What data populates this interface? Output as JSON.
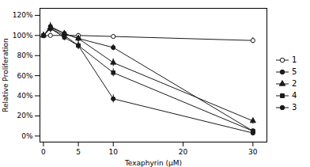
{
  "chart_data": {
    "type": "line",
    "xlabel": "Texaphyrin (μM)",
    "ylabel": "Relative Proliferation",
    "x": [
      0,
      1,
      3,
      5,
      10,
      30
    ],
    "series": [
      {
        "name": "1",
        "color": "#1a1a1a",
        "marker": "circle-open",
        "line_style": "solid",
        "values": [
          100,
          100,
          100,
          100,
          99,
          95
        ],
        "yerr": [
          2,
          2,
          2,
          2,
          2,
          3
        ]
      },
      {
        "name": "5",
        "color": "#1a1a1a",
        "marker": "circle",
        "line_style": "solid",
        "values": [
          100,
          109,
          102,
          97,
          88,
          5
        ],
        "yerr": [
          3,
          4,
          3,
          3,
          3,
          2
        ]
      },
      {
        "name": "2",
        "color": "#1a1a1a",
        "marker": "triangle",
        "line_style": "solid",
        "values": [
          100,
          108,
          102,
          97,
          73,
          15
        ],
        "yerr": [
          3,
          4,
          3,
          3,
          4,
          3
        ]
      },
      {
        "name": "4",
        "color": "#1a1a1a",
        "marker": "square",
        "line_style": "solid",
        "values": [
          100,
          107,
          100,
          90,
          63,
          5
        ],
        "yerr": [
          3,
          4,
          3,
          3,
          4,
          2
        ]
      },
      {
        "name": "3",
        "color": "#1a1a1a",
        "marker": "circle",
        "line_style": "solid",
        "values": [
          100,
          107,
          98,
          90,
          37,
          3
        ],
        "yerr": [
          3,
          4,
          3,
          4,
          4,
          2
        ]
      }
    ],
    "xlim": [
      -0.5,
      32
    ],
    "ylim": [
      -6,
      127
    ],
    "xticks": [
      0,
      5,
      10,
      20,
      30
    ],
    "yticks": [
      {
        "value": 0,
        "label": "0%"
      },
      {
        "value": 20,
        "label": "20%"
      },
      {
        "value": 40,
        "label": "40%"
      },
      {
        "value": 60,
        "label": "60%"
      },
      {
        "value": 80,
        "label": "80%"
      },
      {
        "value": 100,
        "label": "100%"
      },
      {
        "value": 120,
        "label": "120%"
      }
    ],
    "legend": "right",
    "grid": false
  }
}
